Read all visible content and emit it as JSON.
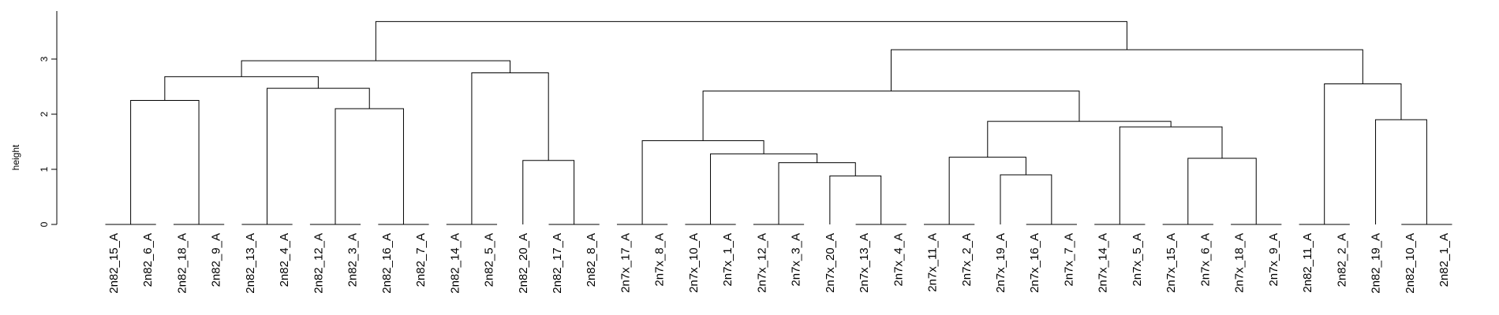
{
  "chart_data": {
    "type": "dendrogram",
    "ylabel": "height",
    "ylim": [
      0,
      3.7
    ],
    "yticks": [
      0,
      1,
      2,
      3
    ],
    "grid": false,
    "legend": "none",
    "colors": {
      "line": "#000000",
      "background": "#ffffff"
    },
    "leaves": [
      "2n82_15_A",
      "2n82_6_A",
      "2n82_18_A",
      "2n82_9_A",
      "2n82_13_A",
      "2n82_4_A",
      "2n82_12_A",
      "2n82_3_A",
      "2n82_16_A",
      "2n82_7_A",
      "2n82_14_A",
      "2n82_5_A",
      "2n82_20_A",
      "2n82_17_A",
      "2n82_8_A",
      "2n7x_17_A",
      "2n7x_8_A",
      "2n7x_10_A",
      "2n7x_1_A",
      "2n7x_12_A",
      "2n7x_3_A",
      "2n7x_20_A",
      "2n7x_13_A",
      "2n7x_4_A",
      "2n7x_11_A",
      "2n7x_2_A",
      "2n7x_19_A",
      "2n7x_16_A",
      "2n7x_7_A",
      "2n7x_14_A",
      "2n7x_5_A",
      "2n7x_15_A",
      "2n7x_6_A",
      "2n7x_18_A",
      "2n7x_9_A",
      "2n82_11_A",
      "2n82_2_A",
      "2n82_19_A",
      "2n82_10_A",
      "2n82_1_A"
    ],
    "merges": [
      {
        "id": "m1",
        "left": "2n82_15_A",
        "right": "2n82_6_A",
        "height": 0
      },
      {
        "id": "m2",
        "left": "2n82_18_A",
        "right": "2n82_9_A",
        "height": 0
      },
      {
        "id": "m3",
        "left": "m1",
        "right": "m2",
        "height": 2.25
      },
      {
        "id": "m4",
        "left": "2n82_13_A",
        "right": "2n82_4_A",
        "height": 0
      },
      {
        "id": "m5",
        "left": "2n82_12_A",
        "right": "2n82_3_A",
        "height": 0
      },
      {
        "id": "m6",
        "left": "2n82_16_A",
        "right": "2n82_7_A",
        "height": 0
      },
      {
        "id": "m7",
        "left": "m5",
        "right": "m6",
        "height": 2.1
      },
      {
        "id": "m8",
        "left": "m4",
        "right": "m7",
        "height": 2.47
      },
      {
        "id": "m9",
        "left": "m3",
        "right": "m8",
        "height": 2.68
      },
      {
        "id": "m10",
        "left": "2n82_14_A",
        "right": "2n82_5_A",
        "height": 0
      },
      {
        "id": "m11",
        "left": "2n82_17_A",
        "right": "2n82_8_A",
        "height": 0
      },
      {
        "id": "m12",
        "left": "2n82_20_A",
        "right": "m11",
        "height": 1.16
      },
      {
        "id": "m13",
        "left": "m10",
        "right": "m12",
        "height": 2.75
      },
      {
        "id": "m14",
        "left": "m9",
        "right": "m13",
        "height": 2.97
      },
      {
        "id": "m15",
        "left": "2n7x_17_A",
        "right": "2n7x_8_A",
        "height": 0
      },
      {
        "id": "m16",
        "left": "2n7x_10_A",
        "right": "2n7x_1_A",
        "height": 0
      },
      {
        "id": "m17",
        "left": "2n7x_12_A",
        "right": "2n7x_3_A",
        "height": 0
      },
      {
        "id": "m18",
        "left": "2n7x_13_A",
        "right": "2n7x_4_A",
        "height": 0
      },
      {
        "id": "m19",
        "left": "2n7x_20_A",
        "right": "m18",
        "height": 0.88
      },
      {
        "id": "m20",
        "left": "m17",
        "right": "m19",
        "height": 1.12
      },
      {
        "id": "m21",
        "left": "m16",
        "right": "m20",
        "height": 1.28
      },
      {
        "id": "m22",
        "left": "m15",
        "right": "m21",
        "height": 1.52
      },
      {
        "id": "m23",
        "left": "2n7x_11_A",
        "right": "2n7x_2_A",
        "height": 0
      },
      {
        "id": "m24",
        "left": "2n7x_16_A",
        "right": "2n7x_7_A",
        "height": 0
      },
      {
        "id": "m25",
        "left": "2n7x_19_A",
        "right": "m24",
        "height": 0.9
      },
      {
        "id": "m26",
        "left": "m23",
        "right": "m25",
        "height": 1.22
      },
      {
        "id": "m27",
        "left": "2n7x_14_A",
        "right": "2n7x_5_A",
        "height": 0
      },
      {
        "id": "m28",
        "left": "2n7x_15_A",
        "right": "2n7x_6_A",
        "height": 0
      },
      {
        "id": "m29",
        "left": "2n7x_18_A",
        "right": "2n7x_9_A",
        "height": 0
      },
      {
        "id": "m30",
        "left": "m28",
        "right": "m29",
        "height": 1.2
      },
      {
        "id": "m31",
        "left": "m27",
        "right": "m30",
        "height": 1.77
      },
      {
        "id": "m32",
        "left": "m26",
        "right": "m31",
        "height": 1.87
      },
      {
        "id": "m33",
        "left": "m22",
        "right": "m32",
        "height": 2.42
      },
      {
        "id": "m34",
        "left": "2n82_11_A",
        "right": "2n82_2_A",
        "height": 0
      },
      {
        "id": "m35",
        "left": "2n82_10_A",
        "right": "2n82_1_A",
        "height": 0
      },
      {
        "id": "m36",
        "left": "2n82_19_A",
        "right": "m35",
        "height": 1.9
      },
      {
        "id": "m37",
        "left": "m34",
        "right": "m36",
        "height": 2.55
      },
      {
        "id": "m38",
        "left": "m33",
        "right": "m37",
        "height": 3.17
      },
      {
        "id": "m39",
        "left": "m14",
        "right": "m38",
        "height": 3.68
      }
    ]
  }
}
